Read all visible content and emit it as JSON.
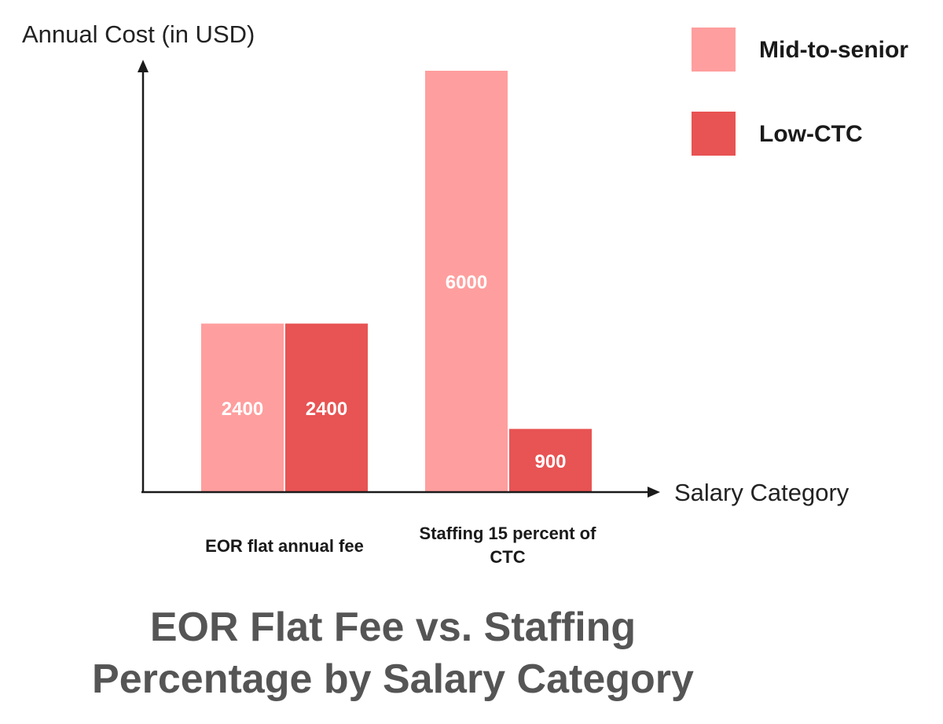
{
  "chart_data": {
    "type": "bar",
    "title": "EOR Flat Fee vs. Staffing Percentage by Salary Category",
    "title_lines": [
      "EOR Flat Fee vs. Staffing",
      "Percentage by Salary Category"
    ],
    "xlabel": "Salary Category",
    "ylabel": "Annual Cost (in USD)",
    "categories": [
      "EOR flat annual fee",
      "Staffing 15 percent of CTC"
    ],
    "category_lines": [
      [
        "EOR flat annual fee"
      ],
      [
        "Staffing 15 percent of",
        "CTC"
      ]
    ],
    "series": [
      {
        "name": "Mid-to-senior",
        "color": "#FF9E9E",
        "values": [
          2400,
          6000
        ]
      },
      {
        "name": "Low-CTC",
        "color": "#E85353",
        "values": [
          2400,
          900
        ]
      }
    ],
    "ylim": [
      0,
      6000
    ],
    "grid": false,
    "legend_position": "top-right",
    "data_label_color": "#FFFFFF"
  }
}
